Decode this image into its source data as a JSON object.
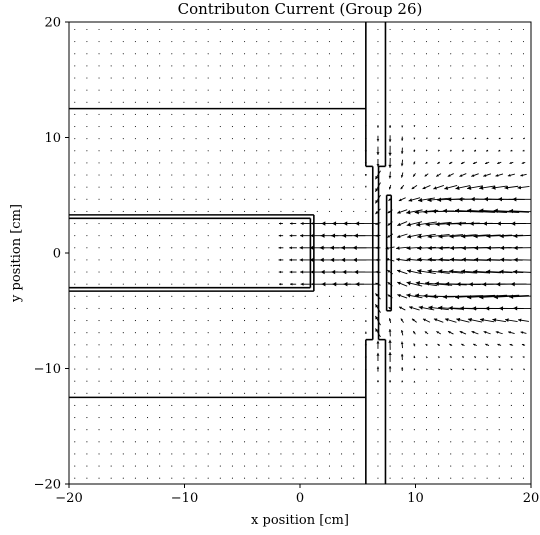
{
  "chart_data": {
    "type": "quiver",
    "title": "Contributon Current (Group 26)",
    "xlabel": "x position [cm]",
    "ylabel": "y position [cm]",
    "xlim": [
      -20,
      20
    ],
    "ylim": [
      -20,
      20
    ],
    "xticks": [
      -20,
      -10,
      0,
      10,
      20
    ],
    "yticks": [
      -20,
      -10,
      0,
      10,
      20
    ],
    "xtick_labels": [
      "−20",
      "−10",
      "0",
      "10",
      "20"
    ],
    "ytick_labels": [
      "−20",
      "−10",
      "0",
      "10",
      "20"
    ],
    "grid": false,
    "arrow_grid_spacing": 1.05,
    "geometry_lines": [
      [
        [
          -20,
          12.5
        ],
        [
          5.7,
          12.5
        ]
      ],
      [
        [
          -20,
          -12.5
        ],
        [
          5.7,
          -12.5
        ]
      ],
      [
        [
          -20,
          3.3
        ],
        [
          1.2,
          3.3
        ]
      ],
      [
        [
          -20,
          3.0
        ],
        [
          0.9,
          3.0
        ]
      ],
      [
        [
          -20,
          -3.0
        ],
        [
          0.9,
          -3.0
        ]
      ],
      [
        [
          -20,
          -3.3
        ],
        [
          1.2,
          -3.3
        ]
      ],
      [
        [
          0.9,
          3.0
        ],
        [
          0.9,
          -3.0
        ]
      ],
      [
        [
          1.2,
          3.3
        ],
        [
          1.2,
          -3.3
        ]
      ],
      [
        [
          5.7,
          20
        ],
        [
          5.7,
          7.5
        ]
      ],
      [
        [
          5.7,
          7.5
        ],
        [
          6.3,
          7.5
        ]
      ],
      [
        [
          6.3,
          7.5
        ],
        [
          6.3,
          -7.5
        ]
      ],
      [
        [
          6.3,
          -7.5
        ],
        [
          5.7,
          -7.5
        ]
      ],
      [
        [
          5.7,
          -7.5
        ],
        [
          5.7,
          -20
        ]
      ],
      [
        [
          7.4,
          20
        ],
        [
          7.4,
          7.5
        ]
      ],
      [
        [
          7.4,
          7.5
        ],
        [
          6.8,
          7.5
        ]
      ],
      [
        [
          6.8,
          7.5
        ],
        [
          6.8,
          -7.5
        ]
      ],
      [
        [
          6.8,
          -7.5
        ],
        [
          7.4,
          -7.5
        ]
      ],
      [
        [
          7.4,
          -7.5
        ],
        [
          7.4,
          -20
        ]
      ],
      [
        [
          7.5,
          5.0
        ],
        [
          7.9,
          5.0
        ]
      ],
      [
        [
          7.9,
          5.0
        ],
        [
          7.9,
          -5.0
        ]
      ],
      [
        [
          7.9,
          -5.0
        ],
        [
          7.5,
          -5.0
        ]
      ],
      [
        [
          7.5,
          -5.0
        ],
        [
          7.5,
          5.0
        ]
      ]
    ]
  },
  "colors": {
    "geometry": "#000000",
    "arrows": "#000000",
    "background": "#ffffff"
  }
}
